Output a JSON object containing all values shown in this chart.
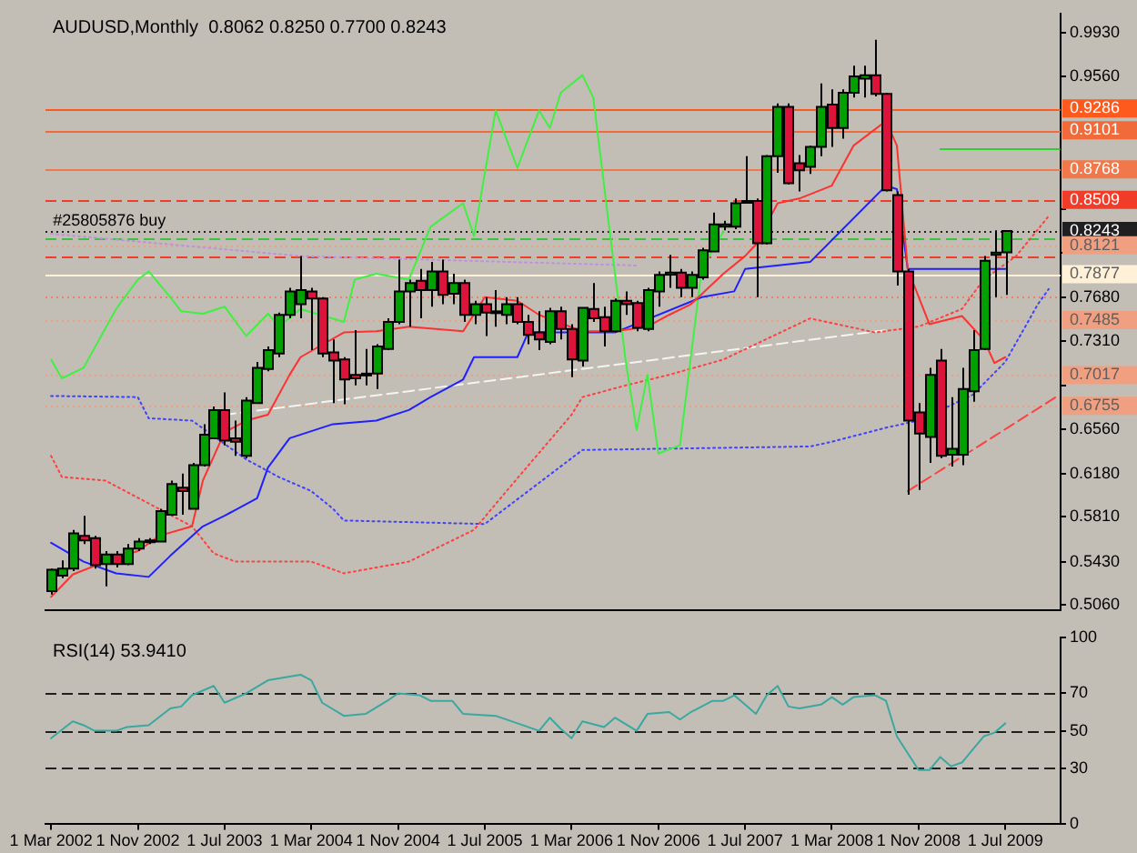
{
  "chart_data": [
    {
      "type": "candlestick",
      "title": "AUDUSD,Monthly  0.8062 0.8250 0.7700 0.8243",
      "x": [
        "2002-03",
        "2002-04",
        "2002-05",
        "2002-06",
        "2002-07",
        "2002-08",
        "2002-09",
        "2002-10",
        "2002-11",
        "2002-12",
        "2003-01",
        "2003-02",
        "2003-03",
        "2003-04",
        "2003-05",
        "2003-06",
        "2003-07",
        "2003-08",
        "2003-09",
        "2003-10",
        "2003-11",
        "2003-12",
        "2004-01",
        "2004-02",
        "2004-03",
        "2004-04",
        "2004-05",
        "2004-06",
        "2004-07",
        "2004-08",
        "2004-09",
        "2004-10",
        "2004-11",
        "2004-12",
        "2005-01",
        "2005-02",
        "2005-03",
        "2005-04",
        "2005-05",
        "2005-06",
        "2005-07",
        "2005-08",
        "2005-09",
        "2005-10",
        "2005-11",
        "2005-12",
        "2006-01",
        "2006-02",
        "2006-03",
        "2006-04",
        "2006-05",
        "2006-06",
        "2006-07",
        "2006-08",
        "2006-09",
        "2006-10",
        "2006-11",
        "2006-12",
        "2007-01",
        "2007-02",
        "2007-03",
        "2007-04",
        "2007-05",
        "2007-06",
        "2007-07",
        "2007-08",
        "2007-09",
        "2007-10",
        "2007-11",
        "2007-12",
        "2008-01",
        "2008-02",
        "2008-03",
        "2008-04",
        "2008-05",
        "2008-06",
        "2008-07",
        "2008-08",
        "2008-09",
        "2008-10",
        "2008-11",
        "2008-12",
        "2009-01",
        "2009-02",
        "2009-03",
        "2009-04",
        "2009-05",
        "2009-06",
        "2009-07"
      ],
      "ohlc": [
        [
          0.518,
          0.537,
          0.515,
          0.536
        ],
        [
          0.531,
          0.544,
          0.529,
          0.537
        ],
        [
          0.537,
          0.57,
          0.535,
          0.567
        ],
        [
          0.565,
          0.582,
          0.558,
          0.561
        ],
        [
          0.563,
          0.565,
          0.537,
          0.54
        ],
        [
          0.541,
          0.552,
          0.522,
          0.549
        ],
        [
          0.549,
          0.552,
          0.538,
          0.541
        ],
        [
          0.541,
          0.558,
          0.54,
          0.554
        ],
        [
          0.554,
          0.563,
          0.552,
          0.56
        ],
        [
          0.56,
          0.563,
          0.558,
          0.561
        ],
        [
          0.56,
          0.588,
          0.56,
          0.586
        ],
        [
          0.583,
          0.612,
          0.582,
          0.609
        ],
        [
          0.606,
          0.618,
          0.583,
          0.603
        ],
        [
          0.588,
          0.627,
          0.588,
          0.625
        ],
        [
          0.625,
          0.66,
          0.624,
          0.651
        ],
        [
          0.648,
          0.675,
          0.648,
          0.672
        ],
        [
          0.672,
          0.687,
          0.642,
          0.646
        ],
        [
          0.648,
          0.663,
          0.633,
          0.645
        ],
        [
          0.633,
          0.683,
          0.631,
          0.68
        ],
        [
          0.678,
          0.713,
          0.678,
          0.708
        ],
        [
          0.707,
          0.726,
          0.705,
          0.723
        ],
        [
          0.72,
          0.755,
          0.717,
          0.753
        ],
        [
          0.753,
          0.776,
          0.75,
          0.773
        ],
        [
          0.762,
          0.803,
          0.75,
          0.774
        ],
        [
          0.773,
          0.776,
          0.723,
          0.767
        ],
        [
          0.767,
          0.768,
          0.717,
          0.72
        ],
        [
          0.721,
          0.732,
          0.678,
          0.714
        ],
        [
          0.715,
          0.717,
          0.677,
          0.698
        ],
        [
          0.702,
          0.74,
          0.693,
          0.699
        ],
        [
          0.703,
          0.724,
          0.693,
          0.702
        ],
        [
          0.703,
          0.728,
          0.69,
          0.726
        ],
        [
          0.724,
          0.75,
          0.723,
          0.747
        ],
        [
          0.747,
          0.8,
          0.745,
          0.773
        ],
        [
          0.773,
          0.783,
          0.743,
          0.78
        ],
        [
          0.782,
          0.792,
          0.75,
          0.774
        ],
        [
          0.774,
          0.798,
          0.76,
          0.79
        ],
        [
          0.79,
          0.8,
          0.762,
          0.77
        ],
        [
          0.771,
          0.788,
          0.762,
          0.78
        ],
        [
          0.78,
          0.783,
          0.747,
          0.753
        ],
        [
          0.753,
          0.765,
          0.745,
          0.762
        ],
        [
          0.762,
          0.768,
          0.735,
          0.755
        ],
        [
          0.755,
          0.774,
          0.743,
          0.756
        ],
        [
          0.753,
          0.768,
          0.745,
          0.762
        ],
        [
          0.762,
          0.768,
          0.745,
          0.747
        ],
        [
          0.747,
          0.753,
          0.728,
          0.736
        ],
        [
          0.738,
          0.756,
          0.723,
          0.732
        ],
        [
          0.73,
          0.759,
          0.728,
          0.756
        ],
        [
          0.756,
          0.76,
          0.732,
          0.741
        ],
        [
          0.741,
          0.745,
          0.7,
          0.715
        ],
        [
          0.714,
          0.759,
          0.709,
          0.759
        ],
        [
          0.758,
          0.78,
          0.747,
          0.75
        ],
        [
          0.751,
          0.76,
          0.726,
          0.739
        ],
        [
          0.739,
          0.767,
          0.738,
          0.765
        ],
        [
          0.765,
          0.773,
          0.753,
          0.762
        ],
        [
          0.763,
          0.765,
          0.739,
          0.742
        ],
        [
          0.741,
          0.776,
          0.739,
          0.774
        ],
        [
          0.773,
          0.79,
          0.76,
          0.787
        ],
        [
          0.787,
          0.804,
          0.776,
          0.789
        ],
        [
          0.789,
          0.792,
          0.768,
          0.776
        ],
        [
          0.776,
          0.79,
          0.768,
          0.787
        ],
        [
          0.785,
          0.81,
          0.783,
          0.808
        ],
        [
          0.807,
          0.84,
          0.807,
          0.83
        ],
        [
          0.828,
          0.833,
          0.825,
          0.83
        ],
        [
          0.828,
          0.852,
          0.826,
          0.848
        ],
        [
          0.849,
          0.888,
          0.848,
          0.85
        ],
        [
          0.85,
          0.852,
          0.768,
          0.814
        ],
        [
          0.814,
          0.889,
          0.813,
          0.888
        ],
        [
          0.888,
          0.933,
          0.874,
          0.93
        ],
        [
          0.93,
          0.933,
          0.864,
          0.865
        ],
        [
          0.882,
          0.889,
          0.858,
          0.876
        ],
        [
          0.879,
          0.897,
          0.873,
          0.896
        ],
        [
          0.896,
          0.95,
          0.888,
          0.93
        ],
        [
          0.932,
          0.945,
          0.896,
          0.912
        ],
        [
          0.912,
          0.945,
          0.903,
          0.942
        ],
        [
          0.942,
          0.965,
          0.938,
          0.956
        ],
        [
          0.954,
          0.965,
          0.938,
          0.957
        ],
        [
          0.957,
          0.987,
          0.939,
          0.941
        ],
        [
          0.941,
          0.942,
          0.858,
          0.859
        ],
        [
          0.855,
          0.858,
          0.778,
          0.79
        ],
        [
          0.79,
          0.792,
          0.6,
          0.663
        ],
        [
          0.67,
          0.678,
          0.604,
          0.652
        ],
        [
          0.649,
          0.708,
          0.627,
          0.702
        ],
        [
          0.714,
          0.724,
          0.631,
          0.633
        ],
        [
          0.634,
          0.683,
          0.624,
          0.639
        ],
        [
          0.634,
          0.708,
          0.625,
          0.69
        ],
        [
          0.688,
          0.74,
          0.679,
          0.723
        ],
        [
          0.724,
          0.803,
          0.723,
          0.799
        ],
        [
          0.804,
          0.825,
          0.768,
          0.806
        ],
        [
          0.8062,
          0.825,
          0.77,
          0.8243
        ]
      ],
      "colors": [
        "#00a000",
        "#00a000",
        "#00a000",
        "#dc143c",
        "#dc143c",
        "#00a000",
        "#dc143c",
        "#00a000",
        "#00a000",
        "#00a000",
        "#00a000",
        "#00a000",
        "#dc143c",
        "#00a000",
        "#00a000",
        "#00a000",
        "#dc143c",
        "#dc143c",
        "#00a000",
        "#00a000",
        "#00a000",
        "#00a000",
        "#00a000",
        "#00a000",
        "#dc143c",
        "#dc143c",
        "#dc143c",
        "#dc143c",
        "#dc143c",
        "#dc143c",
        "#00a000",
        "#00a000",
        "#00a000",
        "#00a000",
        "#dc143c",
        "#00a000",
        "#dc143c",
        "#00a000",
        "#dc143c",
        "#00a000",
        "#dc143c",
        "#00a000",
        "#00a000",
        "#dc143c",
        "#dc143c",
        "#dc143c",
        "#00a000",
        "#dc143c",
        "#dc143c",
        "#00a000",
        "#dc143c",
        "#dc143c",
        "#00a000",
        "#dc143c",
        "#dc143c",
        "#00a000",
        "#00a000",
        "#00a000",
        "#dc143c",
        "#00a000",
        "#00a000",
        "#00a000",
        "#00a000",
        "#00a000",
        "#00a000",
        "#dc143c",
        "#00a000",
        "#00a000",
        "#dc143c",
        "#dc143c",
        "#00a000",
        "#00a000",
        "#dc143c",
        "#00a000",
        "#00a000",
        "#00a000",
        "#dc143c",
        "#dc143c",
        "#dc143c",
        "#dc143c",
        "#dc143c",
        "#00a000",
        "#dc143c",
        "#00a000",
        "#00a000",
        "#00a000",
        "#00a000",
        "#00a000",
        "#00a000"
      ],
      "series": [
        {
          "type": "line",
          "color": "#ff3030",
          "x": [
            "2002-03",
            "2002-05",
            "2002-08",
            "2002-11",
            "2003-01",
            "2003-04",
            "2003-05",
            "2003-07",
            "2003-09",
            "2003-11",
            "2004-01",
            "2004-02",
            "2004-06",
            "2004-09",
            "2004-12",
            "2005-05",
            "2005-07",
            "2005-10",
            "2005-12",
            "2006-04",
            "2006-07",
            "2006-10",
            "2006-12",
            "2007-02",
            "2007-05",
            "2007-07",
            "2007-08",
            "2007-10",
            "2007-12",
            "2008-03",
            "2008-05",
            "2008-08",
            "2008-09",
            "2008-10",
            "2008-12",
            "2009-03",
            "2009-05",
            "2009-06",
            "2009-07"
          ],
          "values": [
            0.513,
            0.532,
            0.543,
            0.552,
            0.565,
            0.573,
            0.612,
            0.653,
            0.663,
            0.668,
            0.702,
            0.717,
            0.738,
            0.739,
            0.743,
            0.739,
            0.768,
            0.765,
            0.753,
            0.739,
            0.739,
            0.743,
            0.753,
            0.762,
            0.788,
            0.803,
            0.813,
            0.848,
            0.852,
            0.863,
            0.897,
            0.918,
            0.897,
            0.792,
            0.745,
            0.752,
            0.732,
            0.712,
            0.717
          ]
        },
        {
          "type": "line",
          "color": "#2020ff",
          "x": [
            "2002-03",
            "2002-06",
            "2002-09",
            "2002-12",
            "2003-02",
            "2003-05",
            "2003-07",
            "2003-10",
            "2003-11",
            "2004-01",
            "2004-05",
            "2004-09",
            "2004-12",
            "2005-02",
            "2005-05",
            "2005-06",
            "2005-10",
            "2005-11",
            "2006-07",
            "2007-03",
            "2007-06",
            "2007-07",
            "2008-01",
            "2008-08",
            "2008-09",
            "2008-10",
            "2009-07"
          ],
          "values": [
            0.559,
            0.543,
            0.533,
            0.53,
            0.548,
            0.573,
            0.582,
            0.597,
            0.623,
            0.648,
            0.66,
            0.663,
            0.672,
            0.683,
            0.698,
            0.717,
            0.717,
            0.738,
            0.738,
            0.768,
            0.773,
            0.792,
            0.798,
            0.863,
            0.86,
            0.792,
            0.792
          ]
        },
        {
          "type": "line",
          "color": "#40f040",
          "x": [
            "2002-03",
            "2002-04",
            "2002-06",
            "2002-09",
            "2002-11",
            "2002-12",
            "2003-02",
            "2003-03",
            "2003-05",
            "2003-07",
            "2003-09",
            "2003-11",
            "2003-12",
            "2004-02",
            "2004-06",
            "2004-07",
            "2004-09",
            "2004-12",
            "2005-02",
            "2005-05",
            "2005-06",
            "2005-08",
            "2005-10",
            "2005-12",
            "2006-01",
            "2006-02",
            "2006-04",
            "2006-05",
            "2006-08",
            "2006-09",
            "2006-10",
            "2006-11",
            "2007-01",
            "2007-03",
            "2007-05"
          ],
          "values": [
            0.715,
            0.699,
            0.708,
            0.758,
            0.783,
            0.79,
            0.768,
            0.756,
            0.754,
            0.76,
            0.735,
            0.754,
            0.743,
            0.758,
            0.747,
            0.783,
            0.788,
            0.783,
            0.828,
            0.848,
            0.82,
            0.927,
            0.878,
            0.927,
            0.912,
            0.942,
            0.957,
            0.938,
            0.713,
            0.655,
            0.702,
            0.635,
            0.642,
            0.792,
            0.824
          ]
        },
        {
          "type": "line",
          "color": "#ff4040",
          "line_style": "dotted",
          "x": [
            "2002-03",
            "2002-04",
            "2002-08",
            "2003-04",
            "2003-06",
            "2003-08",
            "2004-03",
            "2004-06",
            "2004-12",
            "2005-06",
            "2005-09",
            "2006-03",
            "2006-04",
            "2006-08",
            "2006-12",
            "2007-05",
            "2008-01",
            "2008-07",
            "2008-11",
            "2009-03",
            "2009-05",
            "2009-08",
            "2009-11"
          ],
          "values": [
            0.633,
            0.615,
            0.612,
            0.573,
            0.55,
            0.543,
            0.543,
            0.533,
            0.543,
            0.57,
            0.603,
            0.668,
            0.683,
            0.693,
            0.702,
            0.715,
            0.75,
            0.738,
            0.743,
            0.758,
            0.783,
            0.803,
            0.837
          ]
        },
        {
          "type": "line",
          "color": "#4040ff",
          "line_style": "dotted",
          "x": [
            "2002-03",
            "2002-11",
            "2002-12",
            "2003-04",
            "2003-09",
            "2003-12",
            "2004-03",
            "2004-05",
            "2004-06",
            "2005-07",
            "2006-04",
            "2008-01",
            "2008-03",
            "2008-08",
            "2008-11",
            "2009-04",
            "2009-07",
            "2009-10",
            "2009-11"
          ],
          "values": [
            0.684,
            0.683,
            0.665,
            0.663,
            0.63,
            0.615,
            0.603,
            0.588,
            0.578,
            0.575,
            0.638,
            0.641,
            0.645,
            0.657,
            0.663,
            0.685,
            0.713,
            0.762,
            0.775
          ]
        },
        {
          "type": "line",
          "color": "#f4f4f0",
          "line_style": "dashed",
          "x": [
            "2003-07",
            "2008-08"
          ],
          "values": [
            0.668,
            0.74
          ]
        },
        {
          "type": "line",
          "color": "#c090e0",
          "line_style": "dotted",
          "x": [
            "2002-03",
            "2004-02",
            "2006-09"
          ],
          "values": [
            0.822,
            0.803,
            0.795
          ]
        },
        {
          "type": "line",
          "color": "#ff4040",
          "line_style": "dashed",
          "x": [
            "2008-10",
            "2009-12"
          ],
          "values": [
            0.603,
            0.685
          ]
        },
        {
          "type": "line",
          "color": "#30d030",
          "x": [
            "2009-01",
            "2009-12"
          ],
          "values": [
            0.894,
            0.894
          ]
        }
      ],
      "ref_lines": [
        {
          "axis": "y",
          "value": 0.9286,
          "label": "0.9286",
          "color": "#ff5a1e"
        },
        {
          "axis": "y",
          "value": 0.9101,
          "label": "0.9101",
          "color": "#f06a3a"
        },
        {
          "axis": "y",
          "value": 0.8768,
          "label": "0.8768",
          "color": "#f0784a"
        },
        {
          "axis": "y",
          "value": 0.8509,
          "label": "0.8509",
          "color": "#f03c28",
          "line_style": "dashed"
        },
        {
          "axis": "y",
          "value": 0.8243,
          "label": "0.8243",
          "color": "#202020",
          "line_style": "dotted"
        },
        {
          "axis": "y",
          "value": 0.8175,
          "color": "#40c040",
          "line_style": "dashed"
        },
        {
          "axis": "y",
          "value": 0.8121,
          "label": "0.8121",
          "color": "#f0a080",
          "line_style": "dotted"
        },
        {
          "axis": "y",
          "value": 0.8025,
          "color": "#f03c28",
          "line_style": "dashed"
        },
        {
          "axis": "y",
          "value": 0.7877,
          "label": "0.7877",
          "color": "#fff0d8"
        },
        {
          "axis": "y",
          "value": 0.768,
          "color": "#f08060",
          "line_style": "dotted"
        },
        {
          "axis": "y",
          "value": 0.7485,
          "label": "0.7485",
          "color": "#f0a080",
          "line_style": "dotted"
        },
        {
          "axis": "y",
          "value": 0.7017,
          "label": "0.7017",
          "color": "#f0a080",
          "line_style": "dotted"
        },
        {
          "axis": "y",
          "value": 0.6755,
          "label": "0.6755",
          "color": "#f0a080",
          "line_style": "dotted"
        }
      ],
      "annotations": [
        {
          "text": "#25805876 buy",
          "x": "2002-03",
          "y": 0.8243
        }
      ],
      "xlim": [
        "2002-02-16",
        "2009-12-04"
      ],
      "ylim": [
        0.5015,
        1.0095
      ],
      "yticks": [
        {
          "value": 0.993,
          "label": "0.9930"
        },
        {
          "value": 0.956,
          "label": "0.9560"
        },
        {
          "value": 0.843,
          "label": null
        },
        {
          "value": 0.806,
          "label": null
        },
        {
          "value": 0.768,
          "label": "0.7680"
        },
        {
          "value": 0.731,
          "label": "0.7310"
        },
        {
          "value": 0.693,
          "label": null
        },
        {
          "value": 0.656,
          "label": "0.6560"
        },
        {
          "value": 0.618,
          "label": "0.6180"
        },
        {
          "value": 0.581,
          "label": "0.5810"
        },
        {
          "value": 0.543,
          "label": "0.5430"
        },
        {
          "value": 0.506,
          "label": "0.5060"
        }
      ],
      "tick_labels": "y"
    },
    {
      "type": "line",
      "title": "RSI(14) 53.9410",
      "color": "#3aa8a0",
      "x": [
        "2002-03",
        "2002-05",
        "2002-06",
        "2002-07",
        "2002-09",
        "2002-10",
        "2002-12",
        "2003-02",
        "2003-03",
        "2003-04",
        "2003-06",
        "2003-07",
        "2003-09",
        "2003-11",
        "2004-02",
        "2004-03",
        "2004-04",
        "2004-06",
        "2004-08",
        "2004-10",
        "2004-11",
        "2005-01",
        "2005-02",
        "2005-04",
        "2005-05",
        "2005-08",
        "2005-10",
        "2005-12",
        "2006-01",
        "2006-02",
        "2006-03",
        "2006-04",
        "2006-06",
        "2006-07",
        "2006-09",
        "2006-10",
        "2006-12",
        "2007-01",
        "2007-02",
        "2007-04",
        "2007-05",
        "2007-06",
        "2007-08",
        "2007-09",
        "2007-10",
        "2007-11",
        "2007-12",
        "2008-02",
        "2008-03",
        "2008-04",
        "2008-05",
        "2008-07",
        "2008-08",
        "2008-09",
        "2008-11",
        "2008-12",
        "2009-01",
        "2009-02",
        "2009-03",
        "2009-04",
        "2009-05",
        "2009-06",
        "2009-07"
      ],
      "values": [
        46,
        55,
        53,
        50,
        50,
        52,
        53,
        62,
        63,
        69,
        74,
        65,
        70,
        77,
        80,
        77,
        65,
        58,
        59,
        66,
        70,
        69,
        66,
        66,
        59,
        58,
        54,
        50,
        57,
        51,
        46,
        55,
        52,
        57,
        50,
        59,
        60,
        56,
        60,
        66,
        66,
        69,
        59,
        69,
        74,
        63,
        62,
        64,
        68,
        64,
        68,
        69,
        66,
        47,
        29,
        29,
        36,
        31,
        33,
        40,
        47,
        49,
        54
      ],
      "xlim": [
        "2002-02-16",
        "2009-12-04"
      ],
      "ylim": [
        0,
        100
      ],
      "yticks": [
        0,
        30,
        50,
        70,
        100
      ],
      "xticks": [
        {
          "value": "2002-03",
          "label": "1 Mar 2002"
        },
        {
          "value": "2002-11",
          "label": "1 Nov 2002"
        },
        {
          "value": "2003-07",
          "label": "1 Jul 2003"
        },
        {
          "value": "2004-03",
          "label": "1 Mar 2004"
        },
        {
          "value": "2004-11",
          "label": "1 Nov 2004"
        },
        {
          "value": "2005-07",
          "label": "1 Jul 2005"
        },
        {
          "value": "2006-03",
          "label": "1 Mar 2006"
        },
        {
          "value": "2006-11",
          "label": "1 Nov 2006"
        },
        {
          "value": "2007-07",
          "label": "1 Jul 2007"
        },
        {
          "value": "2008-03",
          "label": "1 Mar 2008"
        },
        {
          "value": "2008-11",
          "label": "1 Nov 2008"
        },
        {
          "value": "2009-07",
          "label": "1 Jul 2009"
        }
      ],
      "ref_lines": [
        {
          "axis": "y",
          "value": 70,
          "color": "#202020",
          "line_style": "dashed"
        },
        {
          "axis": "y",
          "value": 50,
          "color": "#202020",
          "line_style": "dashed"
        },
        {
          "axis": "y",
          "value": 30,
          "color": "#202020",
          "line_style": "dashed"
        }
      ]
    }
  ]
}
